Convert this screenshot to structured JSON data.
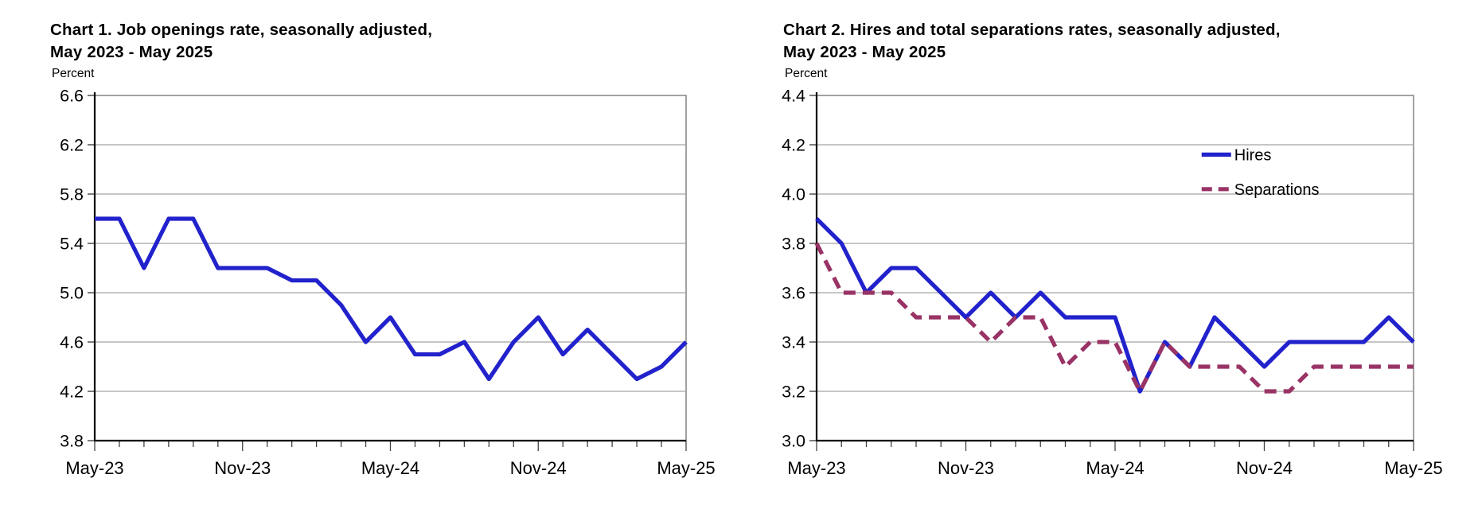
{
  "page": {
    "background": "#ffffff"
  },
  "colors": {
    "grid": "#a3a3a3",
    "frame": "#7a7a7a",
    "axis": "#000000",
    "text": "#000000",
    "hires_blue": "#2222cc",
    "separations_maroon": "#993366"
  },
  "chart_data": [
    {
      "type": "line",
      "title_line1": "Chart 1. Job openings rate, seasonally adjusted,",
      "title_line2": "May 2023 - May 2025",
      "unit_label": "Percent",
      "categories": [
        "May-23",
        "Jun-23",
        "Jul-23",
        "Aug-23",
        "Sep-23",
        "Oct-23",
        "Nov-23",
        "Dec-23",
        "Jan-24",
        "Feb-24",
        "Mar-24",
        "Apr-24",
        "May-24",
        "Jun-24",
        "Jul-24",
        "Aug-24",
        "Sep-24",
        "Oct-24",
        "Nov-24",
        "Dec-24",
        "Jan-25",
        "Feb-25",
        "Mar-25",
        "Apr-25",
        "May-25"
      ],
      "xtick_indices": [
        0,
        6,
        12,
        18,
        24
      ],
      "ylim": [
        3.8,
        6.6
      ],
      "yticks": [
        3.8,
        4.2,
        4.6,
        5.0,
        5.4,
        5.8,
        6.2,
        6.6
      ],
      "grid": true,
      "series": [
        {
          "name": "Job openings rate",
          "color": "#2222cc",
          "dash": null,
          "values": [
            5.6,
            5.6,
            5.2,
            5.6,
            5.6,
            5.2,
            5.2,
            5.2,
            5.1,
            5.1,
            4.9,
            4.6,
            4.8,
            4.5,
            4.5,
            4.6,
            4.3,
            4.6,
            4.8,
            4.5,
            4.7,
            4.5,
            4.3,
            4.4,
            4.6
          ]
        }
      ],
      "legend": null
    },
    {
      "type": "line",
      "title_line1": "Chart 2. Hires and total separations rates, seasonally adjusted,",
      "title_line2": "May 2023 - May 2025",
      "unit_label": "Percent",
      "categories": [
        "May-23",
        "Jun-23",
        "Jul-23",
        "Aug-23",
        "Sep-23",
        "Oct-23",
        "Nov-23",
        "Dec-23",
        "Jan-24",
        "Feb-24",
        "Mar-24",
        "Apr-24",
        "May-24",
        "Jun-24",
        "Jul-24",
        "Aug-24",
        "Sep-24",
        "Oct-24",
        "Nov-24",
        "Dec-24",
        "Jan-25",
        "Feb-25",
        "Mar-25",
        "Apr-25",
        "May-25"
      ],
      "xtick_indices": [
        0,
        6,
        12,
        18,
        24
      ],
      "ylim": [
        3.0,
        4.4
      ],
      "yticks": [
        3.0,
        3.2,
        3.4,
        3.6,
        3.8,
        4.0,
        4.2,
        4.4
      ],
      "grid": true,
      "series": [
        {
          "name": "Hires",
          "color": "#2222cc",
          "dash": null,
          "values": [
            3.9,
            3.8,
            3.6,
            3.7,
            3.7,
            3.6,
            3.5,
            3.6,
            3.5,
            3.6,
            3.5,
            3.5,
            3.5,
            3.2,
            3.4,
            3.3,
            3.5,
            3.4,
            3.3,
            3.4,
            3.4,
            3.4,
            3.4,
            3.5,
            3.4
          ]
        },
        {
          "name": "Separations",
          "color": "#993366",
          "dash": "15 9",
          "values": [
            3.8,
            3.6,
            3.6,
            3.6,
            3.5,
            3.5,
            3.5,
            3.4,
            3.5,
            3.5,
            3.3,
            3.4,
            3.4,
            3.2,
            3.4,
            3.3,
            3.3,
            3.3,
            3.2,
            3.2,
            3.3,
            3.3,
            3.3,
            3.3,
            3.3
          ]
        }
      ],
      "legend": {
        "position": "upper-right",
        "x_frac": 0.645,
        "y_values": [
          4.16,
          4.02
        ],
        "entries": [
          "Hires",
          "Separations"
        ]
      }
    }
  ]
}
